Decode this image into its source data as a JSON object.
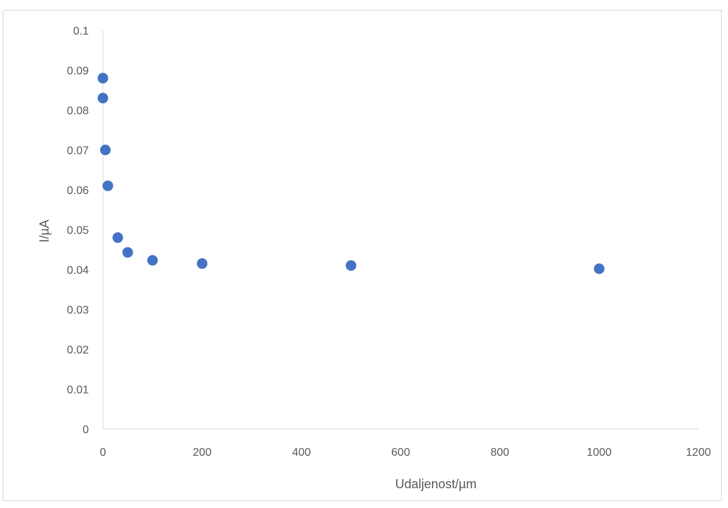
{
  "chart_data": {
    "type": "scatter",
    "title": "",
    "xlabel": "Udaljenost/µm",
    "ylabel": "I/µA",
    "xlim": [
      0,
      1200
    ],
    "ylim": [
      0,
      0.1
    ],
    "x_ticks": [
      "0",
      "200",
      "400",
      "600",
      "800",
      "1000",
      "1200"
    ],
    "y_ticks": [
      "0",
      "0.01",
      "0.02",
      "0.03",
      "0.04",
      "0.05",
      "0.06",
      "0.07",
      "0.08",
      "0.09",
      "0.1"
    ],
    "grid": false,
    "legend": "none",
    "marker_color": "#4472c4",
    "series": [
      {
        "points": [
          {
            "x": 0,
            "y": 0.088
          },
          {
            "x": 0,
            "y": 0.083
          },
          {
            "x": 5,
            "y": 0.07
          },
          {
            "x": 10,
            "y": 0.061
          },
          {
            "x": 30,
            "y": 0.048
          },
          {
            "x": 50,
            "y": 0.0443
          },
          {
            "x": 100,
            "y": 0.0423
          },
          {
            "x": 200,
            "y": 0.0415
          },
          {
            "x": 500,
            "y": 0.041
          },
          {
            "x": 1000,
            "y": 0.0402
          }
        ]
      }
    ]
  }
}
